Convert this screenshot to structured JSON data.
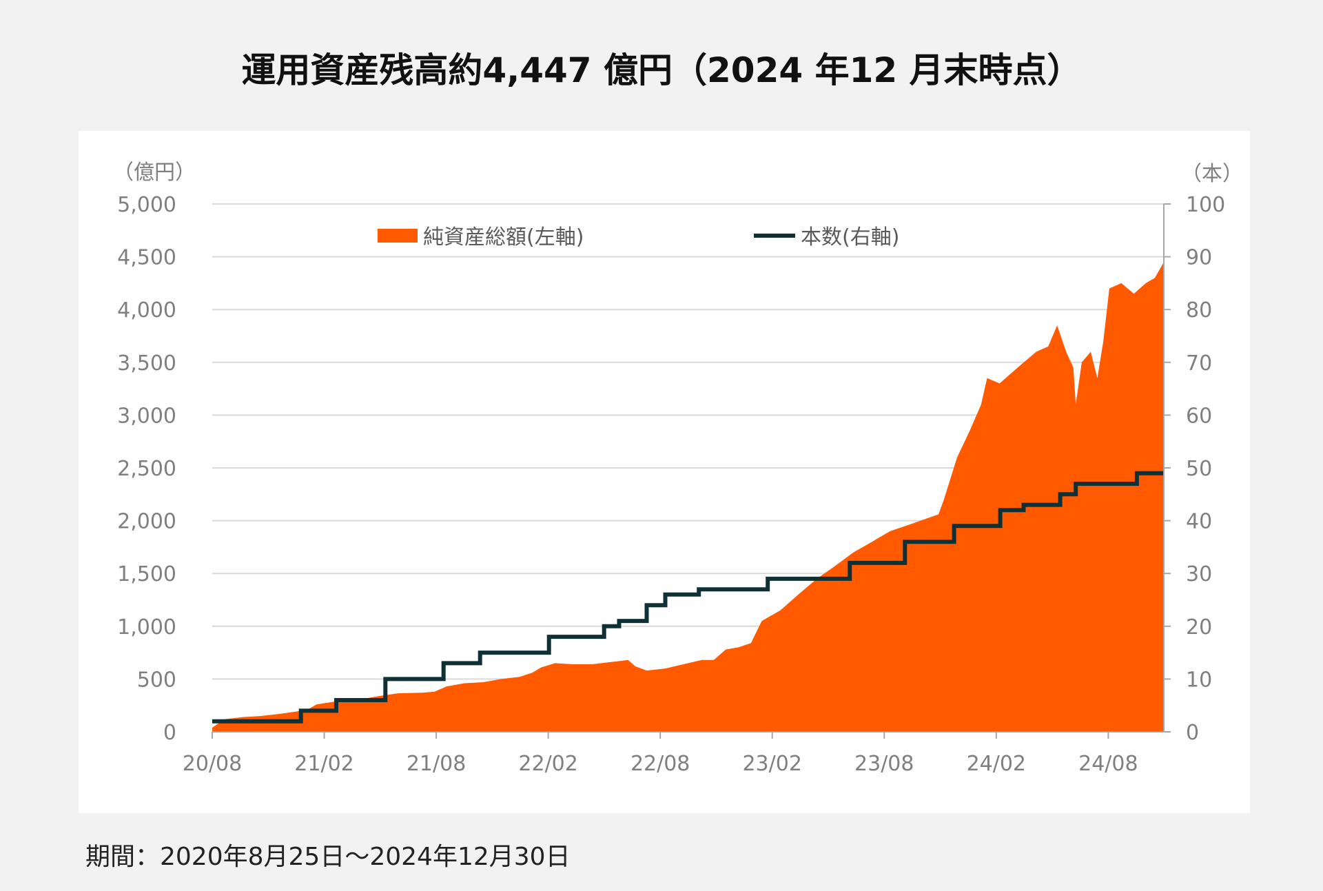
{
  "title": "運用資産残高約4,447 億円（2024 年12 月末時点）",
  "footnote": "期間：2020年8月25日～2024年12月30日",
  "colors": {
    "area": "#ff5a00",
    "line": "#0f3136",
    "grid": "#d9d9d9",
    "tick_text": "#7f7f7f",
    "legend_text": "#595959"
  },
  "chart_data": {
    "type": "area",
    "y_unit_left": "（億円）",
    "y_unit_right": "（本）",
    "ylim_left": [
      0,
      5000
    ],
    "ylim_right": [
      0,
      100
    ],
    "left_ticks": [
      "0",
      "500",
      "1,000",
      "1,500",
      "2,000",
      "2,500",
      "3,000",
      "3,500",
      "4,000",
      "4,500",
      "5,000"
    ],
    "right_ticks": [
      "0",
      "10",
      "20",
      "30",
      "40",
      "50",
      "60",
      "70",
      "80",
      "90",
      "100"
    ],
    "x_ticks": [
      "20/08",
      "21/02",
      "21/08",
      "22/02",
      "22/08",
      "23/02",
      "23/08",
      "24/02",
      "24/08"
    ],
    "x_range": [
      "2020-08-25",
      "2024-12-30"
    ],
    "grid": true,
    "legend_position": "top",
    "series": [
      {
        "name": "純資産総額(左軸)",
        "axis": "left",
        "kind": "area",
        "points": [
          [
            "2020-08-25",
            40
          ],
          [
            "2020-09-15",
            120
          ],
          [
            "2020-10-15",
            140
          ],
          [
            "2020-11-15",
            150
          ],
          [
            "2020-12-15",
            170
          ],
          [
            "2021-01-10",
            190
          ],
          [
            "2021-01-31",
            210
          ],
          [
            "2021-02-15",
            260
          ],
          [
            "2021-03-10",
            280
          ],
          [
            "2021-04-01",
            300
          ],
          [
            "2021-05-01",
            310
          ],
          [
            "2021-06-01",
            340
          ],
          [
            "2021-07-01",
            365
          ],
          [
            "2021-08-10",
            370
          ],
          [
            "2021-08-31",
            380
          ],
          [
            "2021-09-20",
            430
          ],
          [
            "2021-10-20",
            460
          ],
          [
            "2021-11-20",
            470
          ],
          [
            "2021-12-20",
            500
          ],
          [
            "2022-01-20",
            520
          ],
          [
            "2022-02-10",
            560
          ],
          [
            "2022-02-25",
            610
          ],
          [
            "2022-03-20",
            650
          ],
          [
            "2022-04-20",
            640
          ],
          [
            "2022-05-20",
            640
          ],
          [
            "2022-06-20",
            660
          ],
          [
            "2022-07-20",
            680
          ],
          [
            "2022-08-01",
            620
          ],
          [
            "2022-08-20",
            580
          ],
          [
            "2022-09-20",
            600
          ],
          [
            "2022-10-20",
            640
          ],
          [
            "2022-11-20",
            680
          ],
          [
            "2022-12-10",
            680
          ],
          [
            "2022-12-30",
            780
          ],
          [
            "2023-01-20",
            800
          ],
          [
            "2023-02-10",
            840
          ],
          [
            "2023-02-28",
            1050
          ],
          [
            "2023-03-31",
            1150
          ],
          [
            "2023-04-30",
            1300
          ],
          [
            "2023-05-31",
            1450
          ],
          [
            "2023-06-30",
            1570
          ],
          [
            "2023-07-31",
            1700
          ],
          [
            "2023-08-31",
            1800
          ],
          [
            "2023-09-30",
            1900
          ],
          [
            "2023-10-31",
            1960
          ],
          [
            "2023-11-30",
            2020
          ],
          [
            "2023-12-20",
            2060
          ],
          [
            "2023-12-29",
            2200
          ],
          [
            "2024-01-20",
            2600
          ],
          [
            "2024-02-10",
            2850
          ],
          [
            "2024-02-29",
            3100
          ],
          [
            "2024-03-10",
            3350
          ],
          [
            "2024-03-31",
            3300
          ],
          [
            "2024-04-30",
            3450
          ],
          [
            "2024-05-31",
            3600
          ],
          [
            "2024-06-20",
            3650
          ],
          [
            "2024-07-05",
            3850
          ],
          [
            "2024-07-20",
            3600
          ],
          [
            "2024-08-01",
            3450
          ],
          [
            "2024-08-05",
            3100
          ],
          [
            "2024-08-15",
            3500
          ],
          [
            "2024-08-30",
            3600
          ],
          [
            "2024-09-10",
            3350
          ],
          [
            "2024-09-20",
            3700
          ],
          [
            "2024-09-30",
            4200
          ],
          [
            "2024-10-20",
            4250
          ],
          [
            "2024-11-10",
            4150
          ],
          [
            "2024-11-30",
            4250
          ],
          [
            "2024-12-15",
            4300
          ],
          [
            "2024-12-30",
            4450
          ]
        ]
      },
      {
        "name": "本数(右軸)",
        "axis": "right",
        "kind": "step",
        "points": [
          [
            "2020-08-25",
            2
          ],
          [
            "2021-01-20",
            4
          ],
          [
            "2021-03-20",
            6
          ],
          [
            "2021-06-10",
            10
          ],
          [
            "2021-09-15",
            13
          ],
          [
            "2021-11-15",
            15
          ],
          [
            "2022-03-10",
            18
          ],
          [
            "2022-06-10",
            20
          ],
          [
            "2022-07-05",
            21
          ],
          [
            "2022-08-20",
            24
          ],
          [
            "2022-09-20",
            26
          ],
          [
            "2022-11-15",
            27
          ],
          [
            "2023-03-10",
            29
          ],
          [
            "2023-07-25",
            32
          ],
          [
            "2023-10-25",
            36
          ],
          [
            "2024-01-15",
            39
          ],
          [
            "2024-04-01",
            42
          ],
          [
            "2024-05-10",
            43
          ],
          [
            "2024-07-10",
            45
          ],
          [
            "2024-08-05",
            47
          ],
          [
            "2024-11-15",
            49
          ],
          [
            "2024-12-30",
            49
          ]
        ]
      }
    ]
  }
}
